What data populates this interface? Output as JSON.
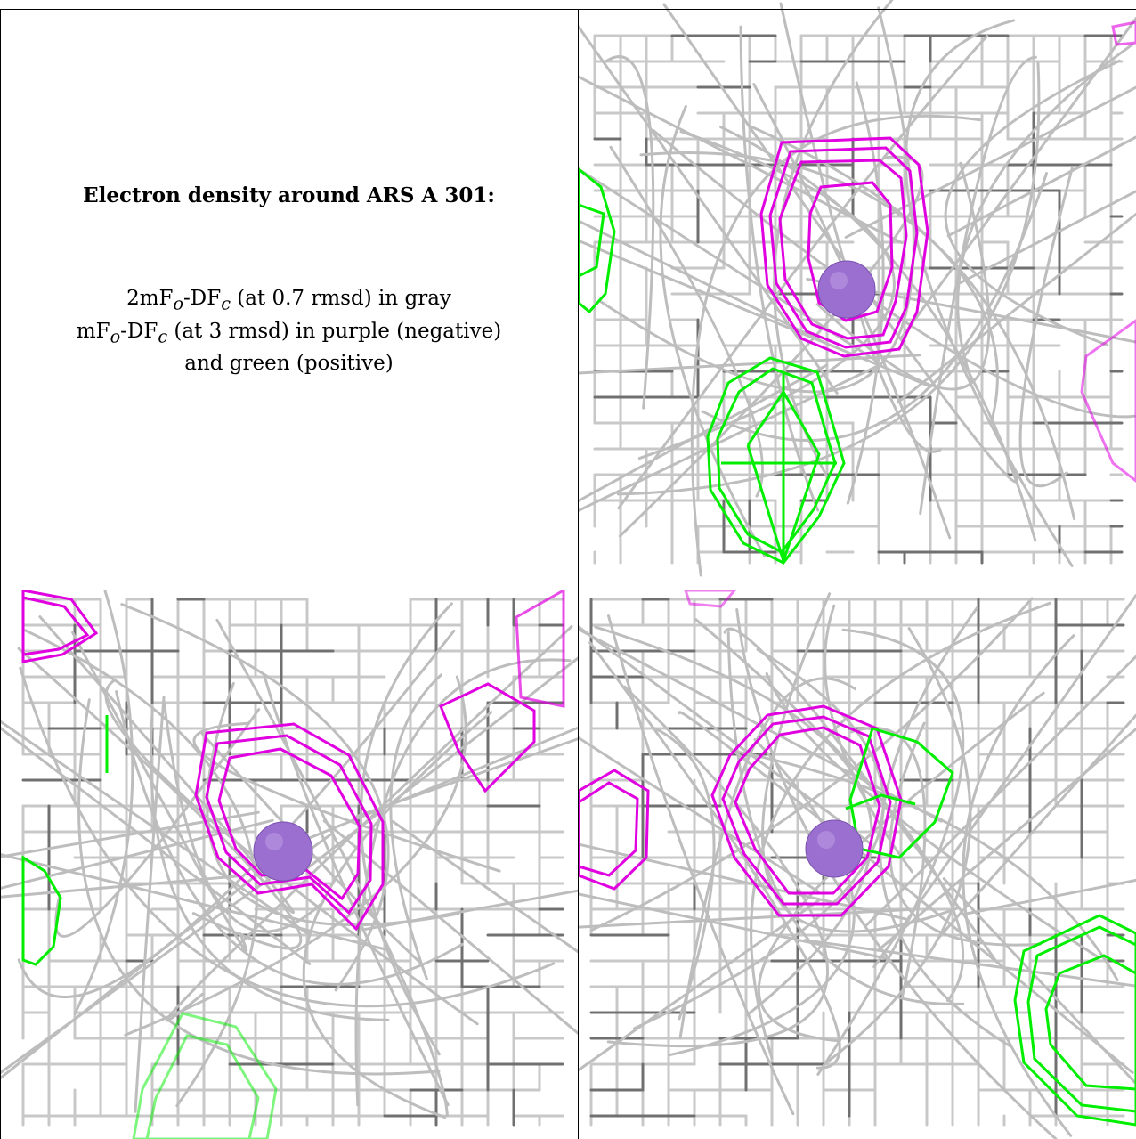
{
  "caption": {
    "title": "Electron density around ARS A 301:",
    "line1": {
      "pre": "2mF",
      "sub1": "o",
      "mid": "-DF",
      "sub2": "c",
      "post": " (at 0.7 rmsd) in gray"
    },
    "line2": {
      "pre": "mF",
      "sub1": "o",
      "mid": "-DF",
      "sub2": "c",
      "post": " (at 3 rmsd) in purple (negative)"
    },
    "line3": "and green (positive)"
  },
  "colors": {
    "gray_mesh": "#c9c9c9",
    "dark_mesh": "#6e6e6e",
    "negative": "#e000e0",
    "positive": "#00ee00",
    "atom": "#9a6fd0"
  },
  "panels": [
    {
      "name": "view-top-right"
    },
    {
      "name": "view-bottom-left"
    },
    {
      "name": "view-bottom-right"
    }
  ]
}
